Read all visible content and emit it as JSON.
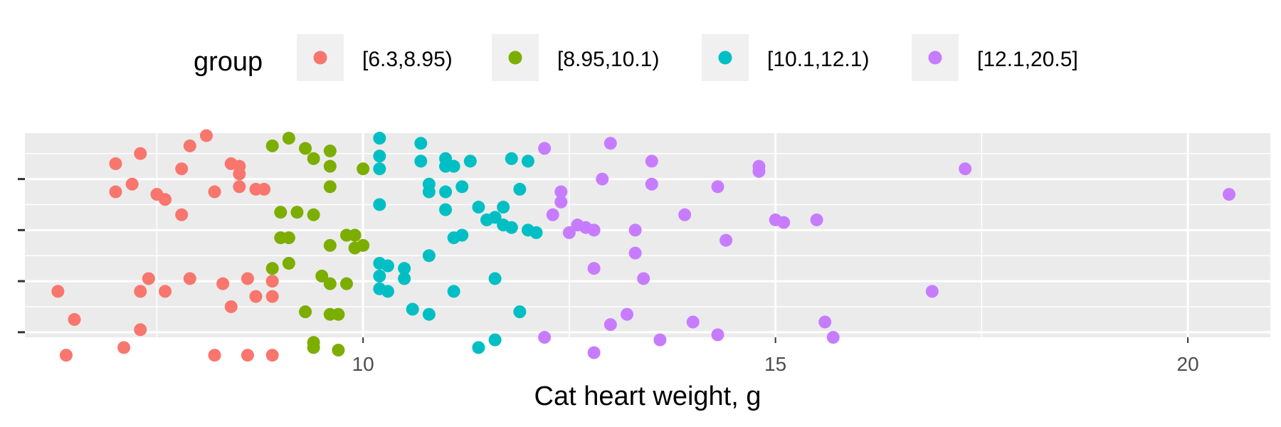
{
  "chart_data": {
    "type": "scatter",
    "xlabel": "Cat heart weight, g",
    "ylabel": "",
    "xlim": [
      5.9,
      21.0
    ],
    "ylim": [
      0.4,
      4.4
    ],
    "x_ticks": [
      10,
      15,
      20
    ],
    "x_tick_labels": [
      "10",
      "15",
      "20"
    ],
    "x_minor_ticks": [
      7.5,
      12.5,
      17.5
    ],
    "y_ticks": [
      0.5,
      1.5,
      2.5,
      3.5,
      4.5
    ],
    "y_tick_labels": [
      "",
      "",
      "",
      "",
      ""
    ],
    "grid": true,
    "legend": {
      "title": "group",
      "position": "top"
    },
    "colors": {
      "panel": "#EBEBEB",
      "grid": "#FFFFFF",
      "legend_key": "#F0F0F0",
      "tick": "#333333",
      "tick_label": "#4D4D4D"
    },
    "series": [
      {
        "name": "[6.3,8.95)",
        "color": "#F8766D",
        "points": [
          [
            8.1,
            4.35
          ],
          [
            7.3,
            4.0
          ],
          [
            7.9,
            4.15
          ],
          [
            7.0,
            3.8
          ],
          [
            7.8,
            3.7
          ],
          [
            8.4,
            3.8
          ],
          [
            8.5,
            3.75
          ],
          [
            8.5,
            3.6
          ],
          [
            7.2,
            3.4
          ],
          [
            7.0,
            3.25
          ],
          [
            7.5,
            3.2
          ],
          [
            7.6,
            3.1
          ],
          [
            8.2,
            3.25
          ],
          [
            8.5,
            3.35
          ],
          [
            8.7,
            3.3
          ],
          [
            8.8,
            3.3
          ],
          [
            7.8,
            2.8
          ],
          [
            6.3,
            1.3
          ],
          [
            7.4,
            1.55
          ],
          [
            7.6,
            1.3
          ],
          [
            7.3,
            1.3
          ],
          [
            7.9,
            1.55
          ],
          [
            8.3,
            1.45
          ],
          [
            8.6,
            1.55
          ],
          [
            8.9,
            1.5
          ],
          [
            8.7,
            1.2
          ],
          [
            8.9,
            1.2
          ],
          [
            8.4,
            1.0
          ],
          [
            6.5,
            0.75
          ],
          [
            7.3,
            0.55
          ],
          [
            7.1,
            0.2
          ],
          [
            6.4,
            0.05
          ],
          [
            8.2,
            0.05
          ],
          [
            8.6,
            0.05
          ],
          [
            8.9,
            0.05
          ]
        ]
      },
      {
        "name": "[8.95,10.1)",
        "color": "#7CAE00",
        "points": [
          [
            9.1,
            4.3
          ],
          [
            8.9,
            4.15
          ],
          [
            9.3,
            4.1
          ],
          [
            9.6,
            4.05
          ],
          [
            9.4,
            3.9
          ],
          [
            9.6,
            3.75
          ],
          [
            10.0,
            3.7
          ],
          [
            9.6,
            3.35
          ],
          [
            9.2,
            2.85
          ],
          [
            9.0,
            2.85
          ],
          [
            9.4,
            2.8
          ],
          [
            9.0,
            2.35
          ],
          [
            9.1,
            2.35
          ],
          [
            9.8,
            2.4
          ],
          [
            9.9,
            2.4
          ],
          [
            9.6,
            2.2
          ],
          [
            10.0,
            2.2
          ],
          [
            9.9,
            2.15
          ],
          [
            9.1,
            1.85
          ],
          [
            8.9,
            1.75
          ],
          [
            9.5,
            1.6
          ],
          [
            9.6,
            1.45
          ],
          [
            9.8,
            1.45
          ],
          [
            9.3,
            0.9
          ],
          [
            9.6,
            0.85
          ],
          [
            9.7,
            0.85
          ],
          [
            9.4,
            0.3
          ],
          [
            9.4,
            0.2
          ],
          [
            9.7,
            0.15
          ]
        ]
      },
      {
        "name": "[10.1,12.1)",
        "color": "#00BFC4",
        "points": [
          [
            10.2,
            4.3
          ],
          [
            10.7,
            4.2
          ],
          [
            10.2,
            3.95
          ],
          [
            10.7,
            3.85
          ],
          [
            11.3,
            3.85
          ],
          [
            11.0,
            3.9
          ],
          [
            11.1,
            3.75
          ],
          [
            11.0,
            3.75
          ],
          [
            11.8,
            3.9
          ],
          [
            12.0,
            3.85
          ],
          [
            10.2,
            3.7
          ],
          [
            10.8,
            3.4
          ],
          [
            11.2,
            3.35
          ],
          [
            11.9,
            3.3
          ],
          [
            10.8,
            3.25
          ],
          [
            11.0,
            3.25
          ],
          [
            10.2,
            3.0
          ],
          [
            11.0,
            2.9
          ],
          [
            11.4,
            2.95
          ],
          [
            11.7,
            2.95
          ],
          [
            11.5,
            2.7
          ],
          [
            11.6,
            2.75
          ],
          [
            11.7,
            2.6
          ],
          [
            11.8,
            2.55
          ],
          [
            12.0,
            2.5
          ],
          [
            12.1,
            2.45
          ],
          [
            11.2,
            2.4
          ],
          [
            11.1,
            2.35
          ],
          [
            10.2,
            1.85
          ],
          [
            10.3,
            1.8
          ],
          [
            10.5,
            1.75
          ],
          [
            10.8,
            2.0
          ],
          [
            10.2,
            1.6
          ],
          [
            10.5,
            1.55
          ],
          [
            10.2,
            1.35
          ],
          [
            10.3,
            1.3
          ],
          [
            11.1,
            1.3
          ],
          [
            11.6,
            1.55
          ],
          [
            10.6,
            0.95
          ],
          [
            10.8,
            0.85
          ],
          [
            11.9,
            0.9
          ],
          [
            11.6,
            0.35
          ],
          [
            11.4,
            0.2
          ]
        ]
      },
      {
        "name": "[12.1,20.5]",
        "color": "#C77CFF",
        "points": [
          [
            12.2,
            4.1
          ],
          [
            13.0,
            4.2
          ],
          [
            13.5,
            3.85
          ],
          [
            14.8,
            3.75
          ],
          [
            14.8,
            3.65
          ],
          [
            17.3,
            3.7
          ],
          [
            12.9,
            3.5
          ],
          [
            13.5,
            3.4
          ],
          [
            14.3,
            3.35
          ],
          [
            12.4,
            3.25
          ],
          [
            12.4,
            3.05
          ],
          [
            12.3,
            2.8
          ],
          [
            13.9,
            2.8
          ],
          [
            15.0,
            2.7
          ],
          [
            15.1,
            2.65
          ],
          [
            15.5,
            2.7
          ],
          [
            12.6,
            2.6
          ],
          [
            12.7,
            2.55
          ],
          [
            12.8,
            2.5
          ],
          [
            13.3,
            2.5
          ],
          [
            12.5,
            2.45
          ],
          [
            14.4,
            2.3
          ],
          [
            13.3,
            2.05
          ],
          [
            12.8,
            1.75
          ],
          [
            13.4,
            1.55
          ],
          [
            16.9,
            1.3
          ],
          [
            20.5,
            3.2
          ],
          [
            13.2,
            0.85
          ],
          [
            13.0,
            0.65
          ],
          [
            14.0,
            0.7
          ],
          [
            15.6,
            0.7
          ],
          [
            14.3,
            0.45
          ],
          [
            15.7,
            0.4
          ],
          [
            13.6,
            0.35
          ],
          [
            12.2,
            0.4
          ],
          [
            12.8,
            0.1
          ]
        ]
      }
    ]
  }
}
